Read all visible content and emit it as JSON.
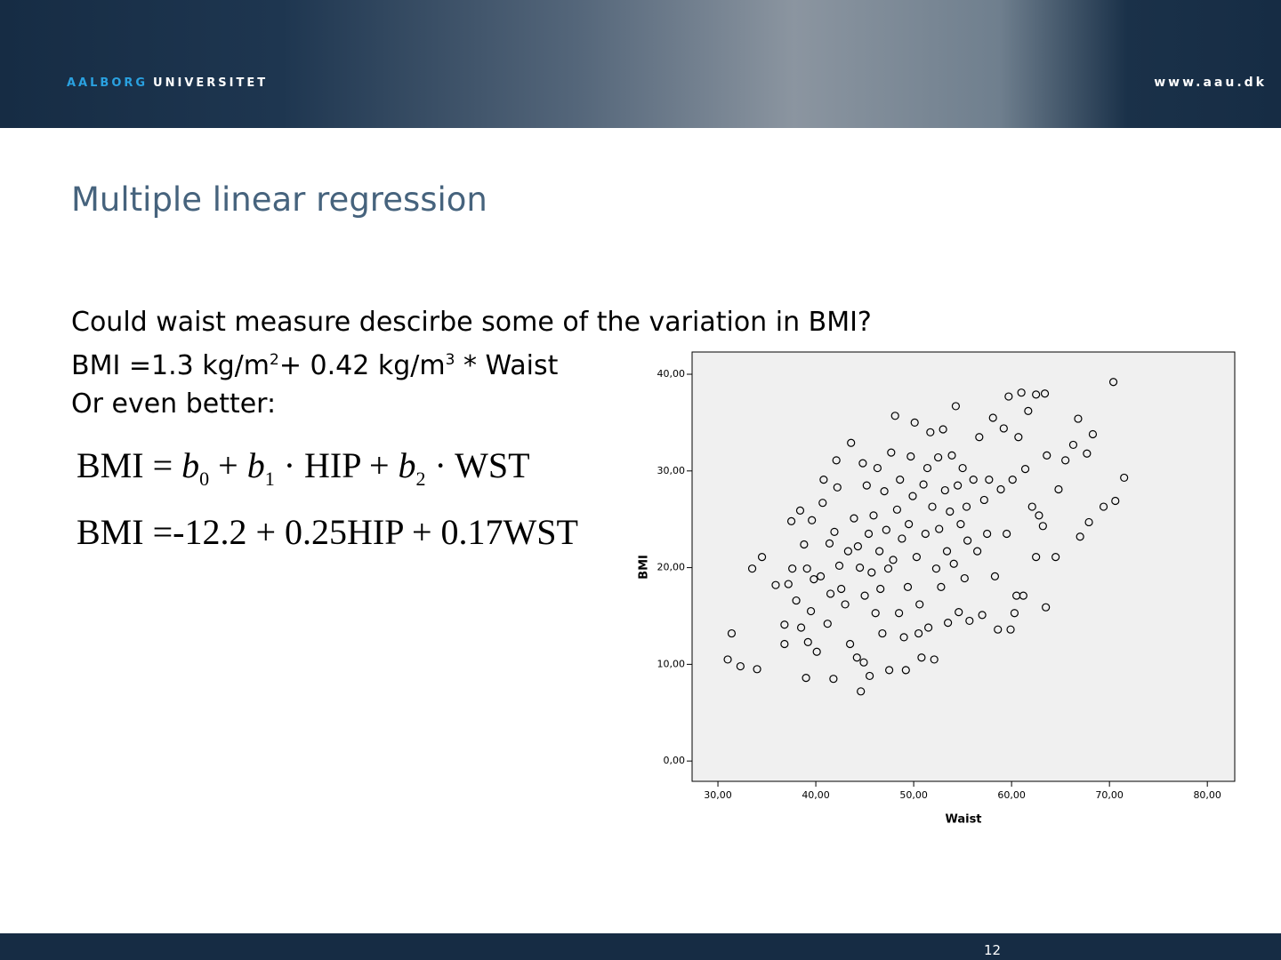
{
  "header": {
    "brand_1": "AALBORG",
    "brand_2": "UNIVERSITET",
    "url": "www.aau.dk"
  },
  "title": "Multiple linear regression",
  "body": {
    "line_1": "Could waist measure descirbe some of the variation in BMI?",
    "line_2": [
      "BMI =1.3 kg/m",
      "2",
      "+ 0.42 kg/m",
      "3",
      "* Waist"
    ],
    "line_3": "Or even better:"
  },
  "equations": {
    "eq_1": [
      "BMI = ",
      "b",
      "0",
      " + ",
      "b",
      "1",
      " · HIP + ",
      "b",
      "2",
      " · WST"
    ],
    "eq_2": "BMI =-12.2 + 0.25HIP + 0.17WST"
  },
  "chart_data": {
    "type": "scatter",
    "x_label": "Waist",
    "y_label": "BMI",
    "color": "#000000",
    "grid": false,
    "xlim": [
      27.36,
      82.8
    ],
    "ylim": [
      -2.1,
      42.3
    ],
    "xticks": [
      {
        "value": 30,
        "label": "30,00"
      },
      {
        "value": 40,
        "label": "40,00"
      },
      {
        "value": 50,
        "label": "50,00"
      },
      {
        "value": 60,
        "label": "60,00"
      },
      {
        "value": 70,
        "label": "70,00"
      },
      {
        "value": 80,
        "label": "80,00"
      }
    ],
    "yticks": [
      {
        "value": 0,
        "label": "0,00"
      },
      {
        "value": 10,
        "label": "10,00"
      },
      {
        "value": 20,
        "label": "20,00"
      },
      {
        "value": 30,
        "label": "30,00"
      },
      {
        "value": 40,
        "label": "40,00"
      }
    ],
    "x": [
      31.0,
      31.4,
      32.3,
      33.5,
      34.0,
      34.5,
      35.9,
      36.8,
      36.8,
      37.2,
      37.5,
      37.6,
      38.0,
      38.4,
      38.5,
      38.8,
      39.0,
      39.1,
      39.2,
      39.5,
      39.6,
      39.8,
      40.1,
      40.5,
      40.7,
      40.8,
      41.2,
      41.4,
      41.5,
      41.8,
      41.9,
      42.1,
      42.2,
      42.4,
      42.6,
      43.0,
      43.3,
      43.5,
      43.6,
      43.9,
      44.2,
      44.3,
      44.5,
      44.6,
      44.8,
      44.9,
      45.0,
      45.2,
      45.4,
      45.5,
      45.7,
      45.9,
      46.1,
      46.3,
      46.5,
      46.6,
      46.8,
      47.0,
      47.2,
      47.4,
      47.5,
      47.7,
      47.9,
      48.1,
      48.3,
      48.5,
      48.6,
      48.8,
      49.0,
      49.2,
      49.4,
      49.5,
      49.7,
      49.9,
      50.1,
      50.3,
      50.5,
      50.6,
      50.8,
      51.0,
      51.2,
      51.4,
      51.5,
      51.7,
      51.9,
      52.1,
      52.3,
      52.5,
      52.6,
      52.8,
      53.0,
      53.2,
      53.4,
      53.5,
      53.7,
      53.9,
      54.1,
      54.3,
      54.5,
      54.6,
      54.8,
      55.0,
      55.2,
      55.4,
      55.5,
      55.7,
      56.1,
      56.5,
      56.7,
      57.0,
      57.2,
      57.5,
      57.7,
      58.1,
      58.3,
      58.6,
      58.9,
      59.2,
      59.5,
      59.7,
      59.9,
      60.1,
      60.3,
      60.5,
      60.7,
      61.0,
      61.2,
      61.4,
      61.7,
      62.1,
      62.5,
      62.5,
      62.8,
      63.2,
      63.5,
      63.4,
      63.6,
      64.5,
      64.8,
      65.5,
      66.3,
      66.8,
      67.0,
      67.7,
      67.9,
      68.3,
      69.4,
      70.4,
      70.6,
      71.5
    ],
    "values": [
      10.5,
      13.2,
      9.8,
      19.9,
      9.5,
      21.1,
      18.2,
      14.1,
      12.1,
      18.3,
      24.8,
      19.9,
      16.6,
      25.9,
      13.8,
      22.4,
      8.6,
      19.9,
      12.3,
      15.5,
      24.9,
      18.8,
      11.3,
      19.1,
      26.7,
      29.1,
      14.2,
      22.5,
      17.3,
      8.5,
      23.7,
      31.1,
      28.3,
      20.2,
      17.8,
      16.2,
      21.7,
      12.1,
      32.9,
      25.1,
      10.7,
      22.2,
      20.0,
      7.2,
      30.8,
      10.2,
      17.1,
      28.5,
      23.5,
      8.8,
      19.5,
      25.4,
      15.3,
      30.3,
      21.7,
      17.8,
      13.2,
      27.9,
      23.9,
      19.9,
      9.4,
      31.9,
      20.8,
      35.7,
      26.0,
      15.3,
      29.1,
      23.0,
      12.8,
      9.4,
      18.0,
      24.5,
      31.5,
      27.4,
      35.0,
      21.1,
      13.2,
      16.2,
      10.7,
      28.6,
      23.5,
      30.3,
      13.8,
      34.0,
      26.3,
      10.5,
      19.9,
      31.4,
      24.0,
      18.0,
      34.3,
      28.0,
      21.7,
      14.3,
      25.8,
      31.6,
      20.4,
      36.7,
      28.5,
      15.4,
      24.5,
      30.3,
      18.9,
      26.3,
      22.8,
      14.5,
      29.1,
      21.7,
      33.5,
      15.1,
      27.0,
      23.5,
      29.1,
      35.5,
      19.1,
      13.6,
      28.1,
      34.4,
      23.5,
      37.7,
      13.6,
      29.1,
      15.3,
      17.1,
      33.5,
      38.1,
      17.1,
      30.2,
      36.2,
      26.3,
      37.9,
      21.1,
      25.4,
      24.3,
      15.9,
      38.0,
      31.6,
      21.1,
      28.1,
      31.1,
      32.7,
      35.4,
      23.2,
      31.8,
      24.7,
      33.8,
      26.3,
      39.2,
      26.9,
      29.3
    ]
  },
  "footer": {
    "page": "12"
  }
}
